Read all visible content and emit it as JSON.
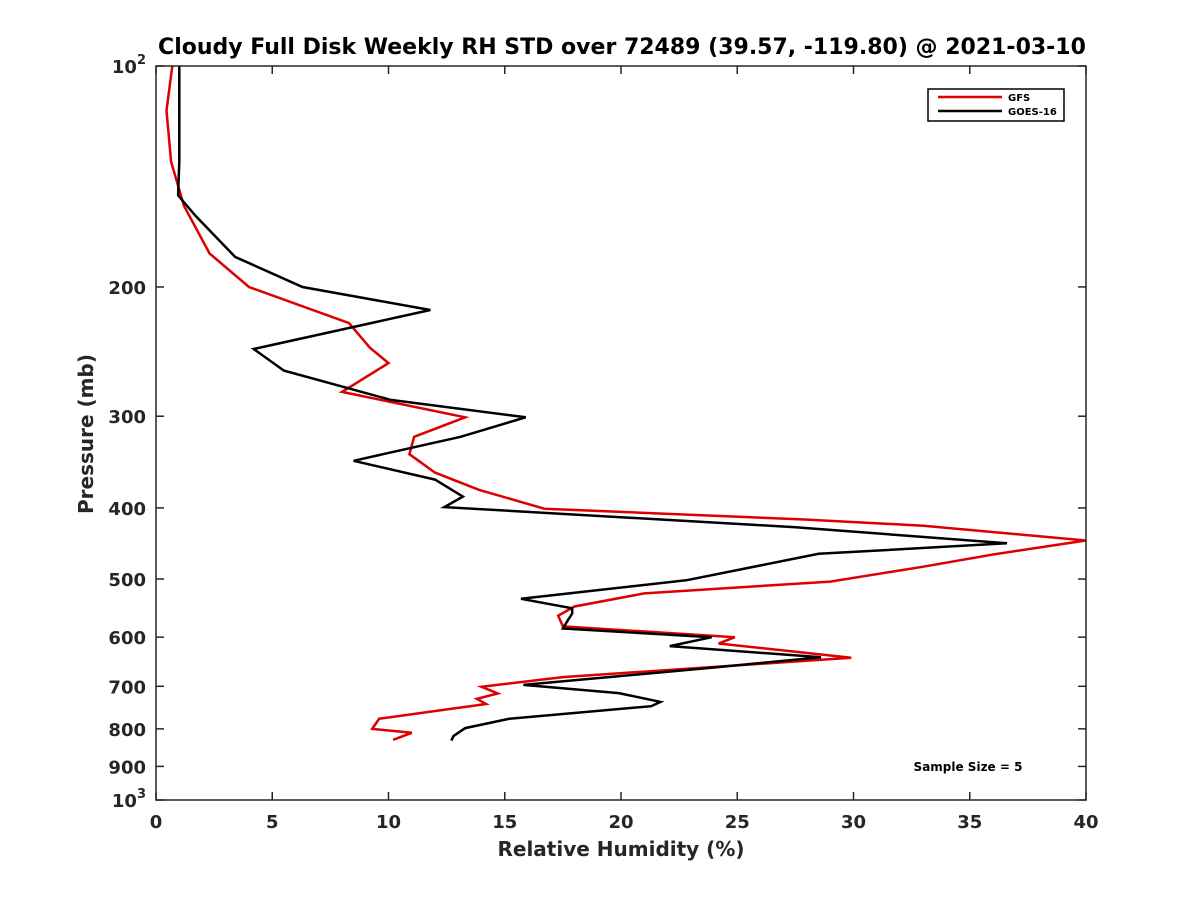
{
  "chart_data": {
    "type": "line",
    "title": "Cloudy Full Disk Weekly RH STD over 72489 (39.57, -119.80) @ 2021-03-10",
    "xlabel": "Relative Humidity (%)",
    "ylabel": "Pressure (mb)",
    "xlim": [
      0,
      40
    ],
    "ylim": [
      100,
      1000
    ],
    "yscale": "log",
    "y_reversed": true,
    "grid": false,
    "legend_position": "top-right",
    "x_ticks": [
      "0",
      "5",
      "10",
      "15",
      "20",
      "25",
      "30",
      "35",
      "40"
    ],
    "y_ticks": [
      {
        "value": 100,
        "label": "10",
        "sup": "2"
      },
      {
        "value": 200,
        "label": "200",
        "sup": ""
      },
      {
        "value": 300,
        "label": "300",
        "sup": ""
      },
      {
        "value": 400,
        "label": "400",
        "sup": ""
      },
      {
        "value": 500,
        "label": "500",
        "sup": ""
      },
      {
        "value": 600,
        "label": "600",
        "sup": ""
      },
      {
        "value": 700,
        "label": "700",
        "sup": ""
      },
      {
        "value": 800,
        "label": "800",
        "sup": ""
      },
      {
        "value": 900,
        "label": "900",
        "sup": ""
      },
      {
        "value": 1000,
        "label": "10",
        "sup": "3"
      }
    ],
    "series": [
      {
        "name": "GFS",
        "color": "#dd0000",
        "points": [
          [
            0.7,
            100
          ],
          [
            0.45,
            115
          ],
          [
            0.65,
            135
          ],
          [
            1.2,
            155
          ],
          [
            2.3,
            180
          ],
          [
            4.0,
            200
          ],
          [
            8.3,
            224
          ],
          [
            9.2,
            242
          ],
          [
            10.0,
            254
          ],
          [
            8.0,
            278
          ],
          [
            13.3,
            301
          ],
          [
            11.1,
            320
          ],
          [
            10.9,
            338
          ],
          [
            12.0,
            358
          ],
          [
            13.9,
            378
          ],
          [
            16.7,
            401
          ],
          [
            28.0,
            415
          ],
          [
            33.0,
            423
          ],
          [
            40.0,
            443
          ],
          [
            36.0,
            463
          ],
          [
            33.0,
            481
          ],
          [
            29.0,
            504
          ],
          [
            21.0,
            523
          ],
          [
            18.0,
            545
          ],
          [
            17.3,
            561
          ],
          [
            17.5,
            580
          ],
          [
            24.9,
            600
          ],
          [
            24.2,
            612
          ],
          [
            29.9,
            640
          ],
          [
            17.5,
            680
          ],
          [
            14.0,
            701
          ],
          [
            14.7,
            716
          ],
          [
            13.8,
            728
          ],
          [
            14.2,
            740
          ],
          [
            9.6,
            775
          ],
          [
            9.3,
            800
          ],
          [
            11.0,
            810
          ],
          [
            10.2,
            828
          ]
        ]
      },
      {
        "name": "GOES-16",
        "color": "#000000",
        "points": [
          [
            1.0,
            100
          ],
          [
            1.0,
            115
          ],
          [
            1.0,
            135
          ],
          [
            0.95,
            150
          ],
          [
            1.7,
            160
          ],
          [
            3.4,
            182
          ],
          [
            6.3,
            200
          ],
          [
            11.8,
            215
          ],
          [
            4.2,
            243
          ],
          [
            5.5,
            260
          ],
          [
            10.1,
            285
          ],
          [
            15.9,
            301
          ],
          [
            13.1,
            320
          ],
          [
            8.5,
            345
          ],
          [
            12.0,
            366
          ],
          [
            13.2,
            386
          ],
          [
            12.4,
            399
          ],
          [
            27.5,
            425
          ],
          [
            36.6,
            447
          ],
          [
            28.5,
            462
          ],
          [
            22.8,
            502
          ],
          [
            15.7,
            532
          ],
          [
            17.9,
            548
          ],
          [
            17.9,
            557
          ],
          [
            17.7,
            570
          ],
          [
            17.5,
            584
          ],
          [
            23.9,
            600
          ],
          [
            22.1,
            617
          ],
          [
            28.6,
            639
          ],
          [
            24.0,
            660
          ],
          [
            15.8,
            697
          ],
          [
            19.9,
            715
          ],
          [
            21.7,
            735
          ],
          [
            21.3,
            745
          ],
          [
            15.2,
            775
          ],
          [
            13.3,
            798
          ],
          [
            12.8,
            818
          ],
          [
            12.7,
            830
          ]
        ]
      }
    ],
    "annotation": "Sample Size = 5"
  }
}
